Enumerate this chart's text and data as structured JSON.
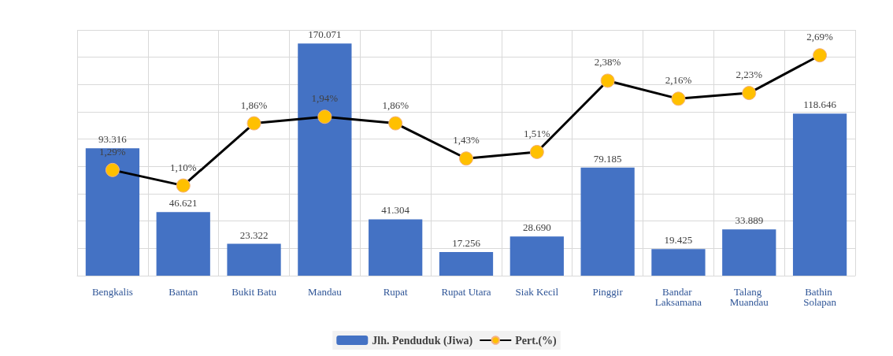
{
  "chart_data": {
    "type": "bar",
    "categories": [
      "Bengkalis",
      "Bantan",
      "Bukit Batu",
      "Mandau",
      "Rupat",
      "Rupat Utara",
      "Siak Kecil",
      "Pinggir",
      "Bandar Laksamana",
      "Talang Muandau",
      "Bathin Solapan"
    ],
    "series": [
      {
        "name": "Jlh. Penduduk (Jiwa)",
        "color": "#4472c4",
        "values": [
          93316,
          46621,
          23322,
          170071,
          41304,
          17256,
          28690,
          79185,
          19425,
          33889,
          118646
        ],
        "value_labels": [
          "93.316",
          "46.621",
          "23.322",
          "170.071",
          "41.304",
          "17.256",
          "28.690",
          "79.185",
          "19.425",
          "33.889",
          "118.646"
        ]
      },
      {
        "name": "Pert.(%)",
        "type": "line",
        "axis": "y2",
        "color": "#000000",
        "marker": "circle",
        "values": [
          1.29,
          1.1,
          1.86,
          1.94,
          1.86,
          1.43,
          1.51,
          2.38,
          2.16,
          2.23,
          2.69
        ],
        "value_labels": [
          "1,29%",
          "1,10%",
          "1,86%",
          "1,94%",
          "1,86%",
          "1,43%",
          "1,51%",
          "2,38%",
          "2,16%",
          "2,23%",
          "2,69%"
        ]
      }
    ],
    "ylim": [
      0,
      180000
    ],
    "yticks": [
      {
        "value": 0,
        "label": null
      },
      {
        "value": 20000,
        "label": null
      },
      {
        "value": 40000,
        "label": null
      },
      {
        "value": 60000,
        "label": null
      },
      {
        "value": 80000,
        "label": null
      },
      {
        "value": 100000,
        "label": null
      },
      {
        "value": 120000,
        "label": null
      },
      {
        "value": 140000,
        "label": null
      },
      {
        "value": 160000,
        "label": null
      },
      {
        "value": 180000,
        "label": null
      }
    ],
    "y2lim": [
      0,
      3
    ],
    "grid": true,
    "legend": "bottom",
    "tick_labels": "x"
  }
}
